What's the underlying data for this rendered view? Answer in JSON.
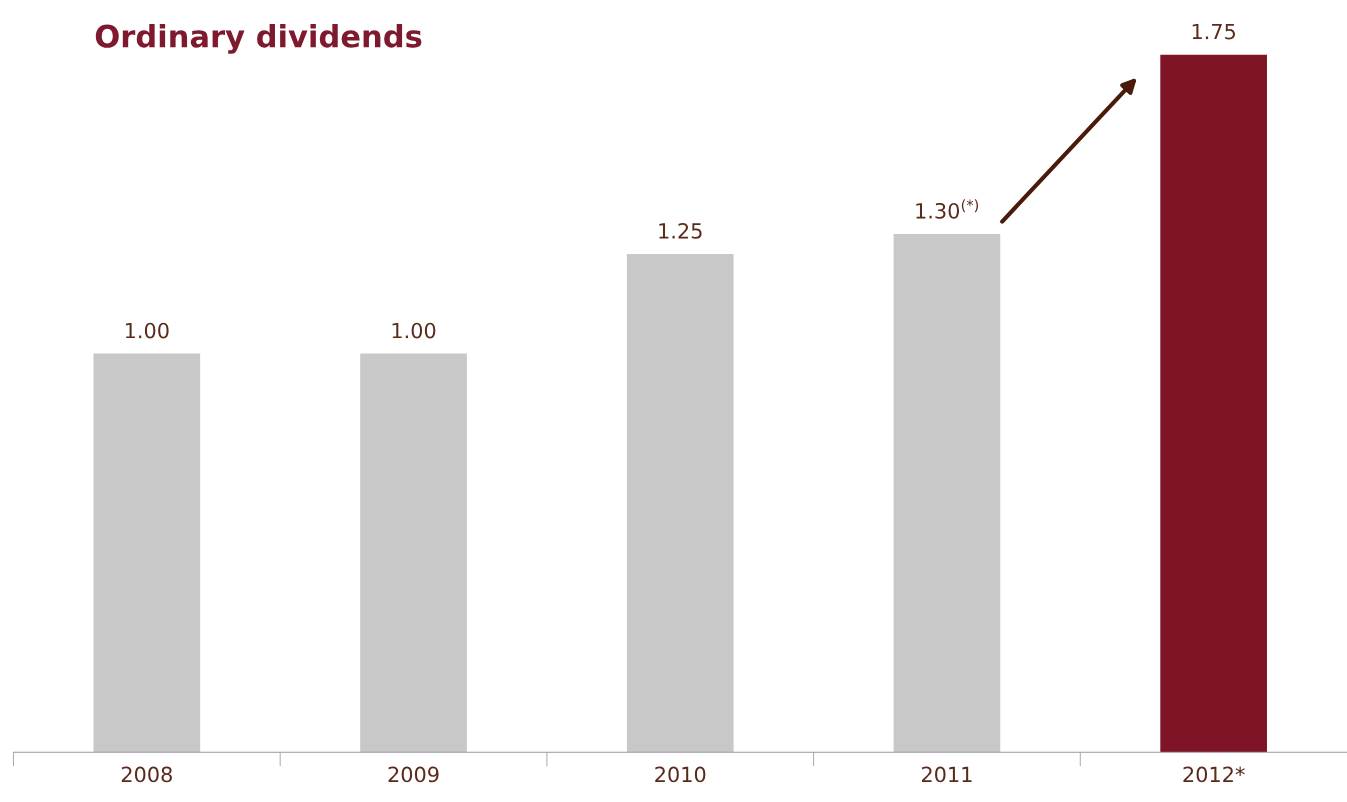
{
  "chart_data": {
    "type": "bar",
    "title": "Ordinary dividends",
    "categories": [
      "2008",
      "2009",
      "2010",
      "2011",
      "2012*"
    ],
    "values": [
      1.0,
      1.0,
      1.25,
      1.3,
      1.75
    ],
    "colors": [
      "#c8c8c8",
      "#c8c8c8",
      "#c8c8c8",
      "#c8c8c8",
      "#7f1426"
    ],
    "value_labels": [
      "1.00",
      "1.00",
      "1.25",
      "1.30$^{(*)}$",
      "1.75"
    ],
    "grid": false,
    "legend": false
  }
}
